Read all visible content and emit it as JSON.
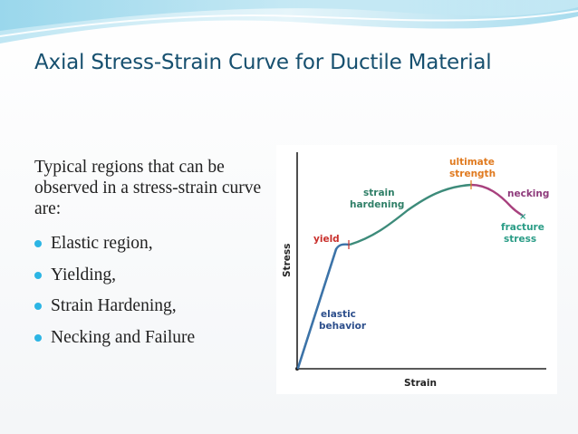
{
  "slide": {
    "title": "Axial Stress-Strain Curve for Ductile Material",
    "intro_text": "Typical regions that can be observed in a stress-strain curve are:",
    "bullets": [
      "Elastic region,",
      "Yielding,",
      "Strain Hardening,",
      "Necking and Failure"
    ]
  },
  "diagram": {
    "x_axis_label": "Strain",
    "y_axis_label": "Stress",
    "labels": {
      "yield": "yield",
      "strain_hardening_1": "strain",
      "strain_hardening_2": "hardening",
      "ultimate_strength_1": "ultimate",
      "ultimate_strength_2": "strength",
      "necking": "necking",
      "fracture_stress_1": "fracture",
      "fracture_stress_2": "stress",
      "elastic_behavior_1": "elastic",
      "elastic_behavior_2": "behavior"
    }
  },
  "colors": {
    "title": "#17506f",
    "bullet": "#2cb5e4",
    "elastic_curve": "#3c73a8",
    "hardening_curve": "#3d8b7a",
    "necking_curve": "#a8417e",
    "label_blue": "#2d4f8c",
    "label_green": "#2f7f67",
    "label_orange": "#e07a1f",
    "label_red": "#c9302c",
    "label_purple": "#8e3a7b",
    "label_teal": "#2a9c86"
  }
}
